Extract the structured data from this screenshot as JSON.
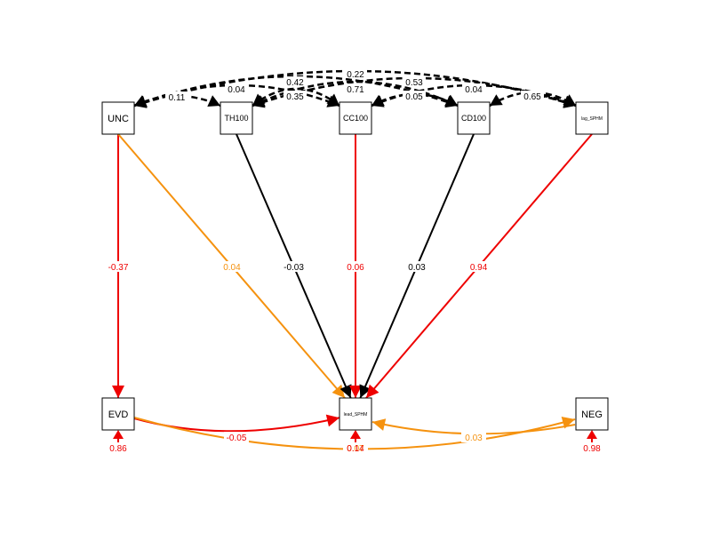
{
  "diagram": {
    "nodes": [
      {
        "id": "UNC",
        "label": "UNC",
        "size": "normal"
      },
      {
        "id": "TH100",
        "label": "TH100",
        "size": "normal"
      },
      {
        "id": "CC100",
        "label": "CC100",
        "size": "normal"
      },
      {
        "id": "CD100",
        "label": "CD100",
        "size": "normal"
      },
      {
        "id": "lag_SPHM",
        "label": "lag_SPHM",
        "size": "tiny"
      },
      {
        "id": "EVD",
        "label": "EVD",
        "size": "normal"
      },
      {
        "id": "lead_SPHM",
        "label": "lead_SPHM",
        "size": "tiny"
      },
      {
        "id": "NEG",
        "label": "NEG",
        "size": "normal"
      }
    ],
    "colors": {
      "red": "#ee0000",
      "orange": "#f5920f",
      "black": "#000000"
    },
    "paths": [
      {
        "from": "UNC",
        "to": "EVD",
        "label": "-0.37",
        "color": "red"
      },
      {
        "from": "UNC",
        "to": "lead_SPHM",
        "label": "0.04",
        "color": "orange"
      },
      {
        "from": "TH100",
        "to": "lead_SPHM",
        "label": "-0.03",
        "color": "black"
      },
      {
        "from": "CC100",
        "to": "lead_SPHM",
        "label": "0.06",
        "color": "red"
      },
      {
        "from": "CD100",
        "to": "lead_SPHM",
        "label": "0.03",
        "color": "black"
      },
      {
        "from": "lag_SPHM",
        "to": "lead_SPHM",
        "label": "0.94",
        "color": "red"
      },
      {
        "from": "EVD",
        "to": "lead_SPHM",
        "label": "-0.05",
        "color": "red"
      },
      {
        "from": "EVD",
        "to": "NEG",
        "label": "0.07",
        "color": "orange"
      },
      {
        "from": "NEG",
        "to": "lead_SPHM",
        "label": "0.03",
        "color": "orange"
      }
    ],
    "covariances": [
      {
        "a": "UNC",
        "b": "TH100",
        "label": "0.11"
      },
      {
        "a": "TH100",
        "b": "CC100",
        "label": "0.04"
      },
      {
        "a": "UNC",
        "b": "CC100",
        "label": "0.35"
      },
      {
        "a": "UNC",
        "b": "CD100",
        "label": "0.42"
      },
      {
        "a": "TH100",
        "b": "CD100",
        "label": "0.71"
      },
      {
        "a": "UNC",
        "b": "lag_SPHM",
        "label": "0.22"
      },
      {
        "a": "TH100",
        "b": "lag_SPHM",
        "label": "0.53"
      },
      {
        "a": "CC100",
        "b": "CD100",
        "label": "0.05"
      },
      {
        "a": "CC100",
        "b": "lag_SPHM",
        "label": "0.04"
      },
      {
        "a": "CD100",
        "b": "lag_SPHM",
        "label": "0.65"
      }
    ],
    "residuals": [
      {
        "node": "EVD",
        "label": "0.86"
      },
      {
        "node": "lead_SPHM",
        "label": "0.14"
      },
      {
        "node": "NEG",
        "label": "0.98"
      }
    ]
  }
}
